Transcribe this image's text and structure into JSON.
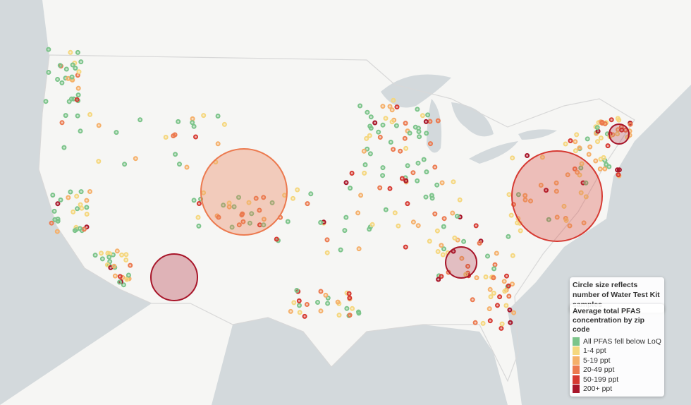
{
  "legend": {
    "size_note": "Circle size reflects number of Water Test Kit samples",
    "title": "Average total PFAS concentration by zip code",
    "items": [
      {
        "label": "All PFAS fell below LoQ",
        "color": "#7cc48a"
      },
      {
        "label": "1-4 ppt",
        "color": "#f5d77e"
      },
      {
        "label": "5-19 ppt",
        "color": "#f5b06a"
      },
      {
        "label": "20-49 ppt",
        "color": "#ec7a4f"
      },
      {
        "label": "50-199 ppt",
        "color": "#d63a32"
      },
      {
        "label": "200+ ppt",
        "color": "#a8162a"
      }
    ]
  }
}
